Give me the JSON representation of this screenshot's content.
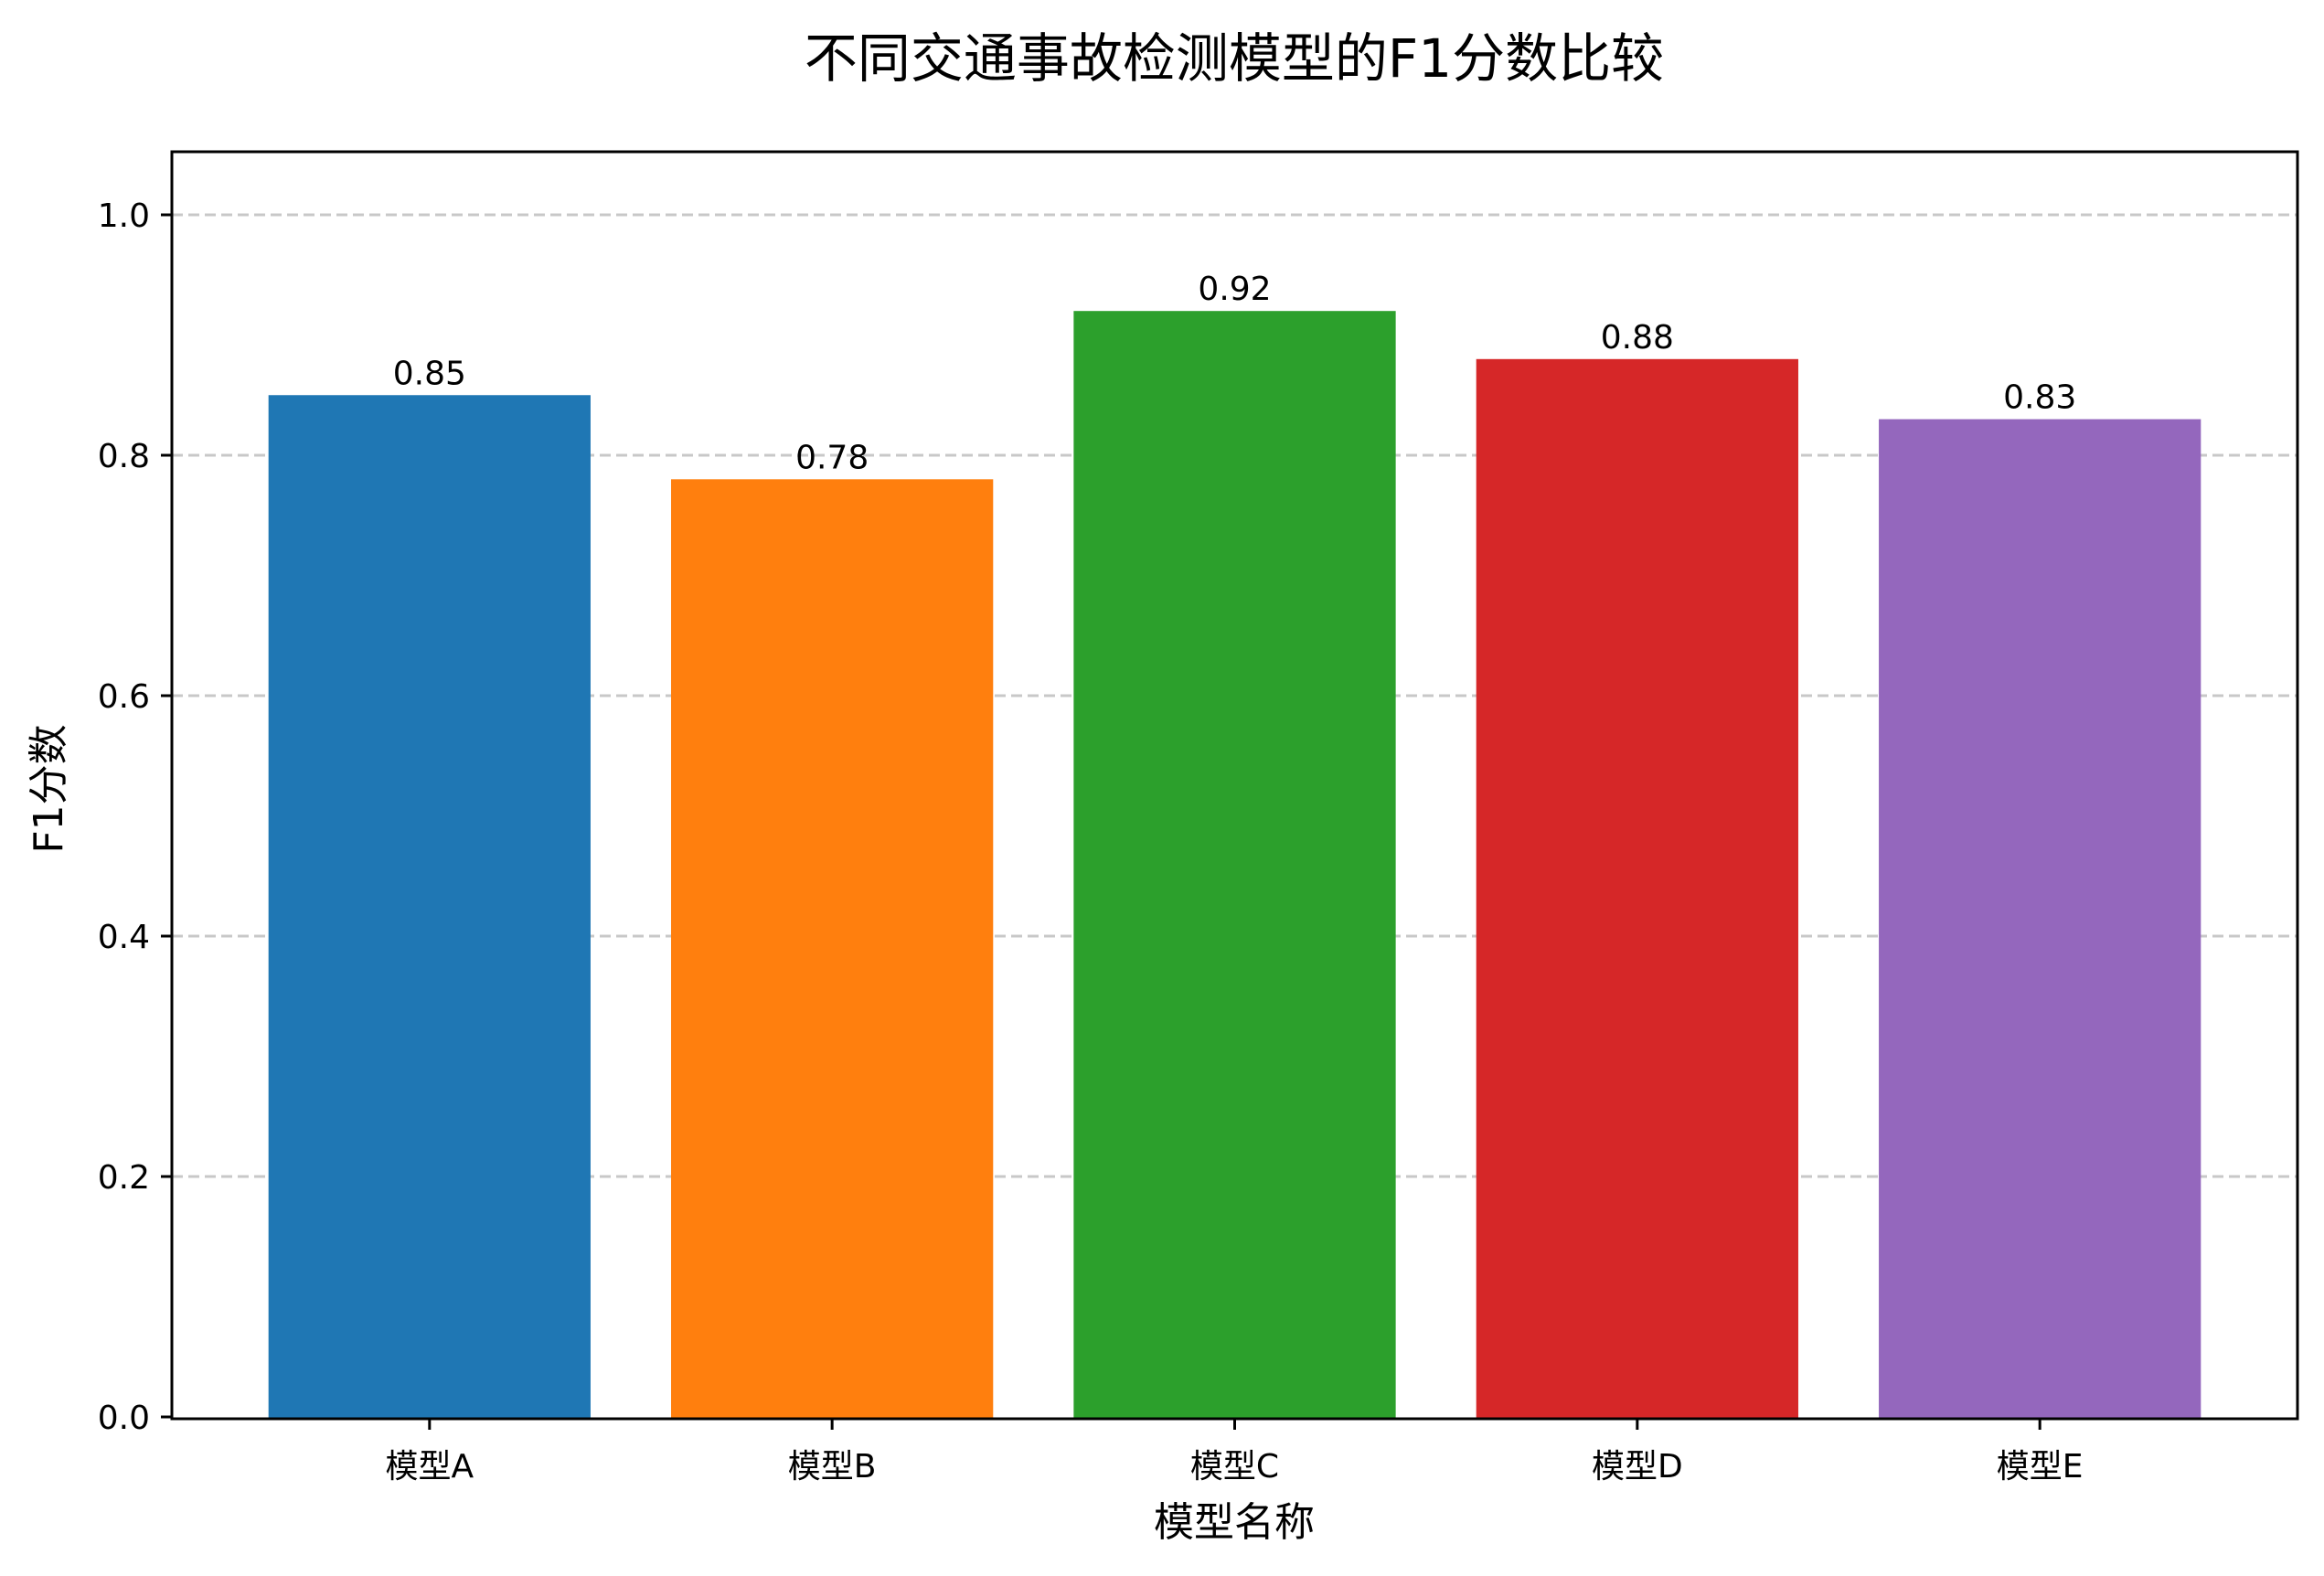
{
  "chart_data": {
    "type": "bar",
    "title": "不同交通事故检测模型的F1分数比较",
    "xlabel": "模型名称",
    "ylabel": "F1分数",
    "categories": [
      "模型A",
      "模型B",
      "模型C",
      "模型D",
      "模型E"
    ],
    "values": [
      0.85,
      0.78,
      0.92,
      0.88,
      0.83
    ],
    "value_labels": [
      "0.85",
      "0.78",
      "0.92",
      "0.88",
      "0.83"
    ],
    "colors": [
      "#1f77b4",
      "#ff7f0e",
      "#2ca02c",
      "#d62728",
      "#9467bd"
    ],
    "ylim": [
      0,
      1.05
    ],
    "yticks": [
      0.0,
      0.2,
      0.4,
      0.6,
      0.8,
      1.0
    ],
    "ytick_labels": [
      "0.0",
      "0.2",
      "0.4",
      "0.6",
      "0.8",
      "1.0"
    ],
    "grid": {
      "axis": "y",
      "style": "dashed",
      "color": "#c8c8c8"
    },
    "legend": null
  }
}
